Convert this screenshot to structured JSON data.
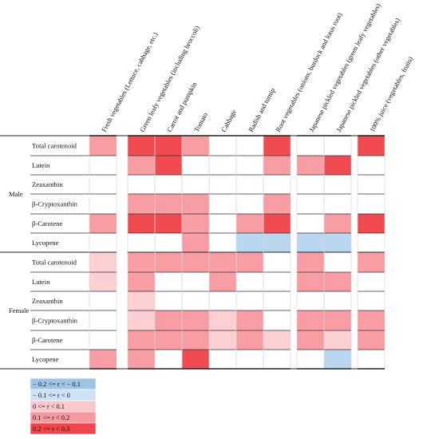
{
  "chart_data": {
    "type": "heatmap",
    "columns": [
      "Fresh vegetables (Lettuce, cabbage, etc.)",
      "Green leafy vegetables (including broccoli)",
      "Carrot and pumpkin",
      "Tomato",
      "Cabbage",
      "Radish and turnip",
      "Root vegetables (onions, burdock and lotus root)",
      "Japanese pickled vegetables (green leafy vegetables)",
      "Japanese pickled vegetables (other vegetables)",
      "100% juice (vegetables, fruits)"
    ],
    "groups": [
      {
        "name": "Male",
        "rows": [
          {
            "label": "Total carotenoid",
            "values": [
              3,
              4,
              4,
              3,
              null,
              null,
              4,
              null,
              null,
              4
            ]
          },
          {
            "label": "Lutein",
            "values": [
              null,
              3,
              4,
              null,
              null,
              null,
              3,
              3,
              4,
              null
            ]
          },
          {
            "label": "Zeaxanthin",
            "values": [
              null,
              null,
              null,
              null,
              null,
              null,
              null,
              null,
              null,
              null
            ]
          },
          {
            "label": "β-Cryptoxanthin",
            "values": [
              null,
              3,
              3,
              3,
              null,
              null,
              3,
              null,
              null,
              null
            ]
          },
          {
            "label": "β-Carotene",
            "values": [
              3,
              4,
              4,
              3,
              null,
              3,
              4,
              null,
              3,
              4
            ]
          },
          {
            "label": "Lycopene",
            "values": [
              null,
              null,
              null,
              3,
              null,
              1,
              1,
              1,
              1,
              null
            ]
          }
        ]
      },
      {
        "name": "Female",
        "rows": [
          {
            "label": "Total carotenoid",
            "values": [
              2,
              3,
              3,
              3,
              3,
              3,
              null,
              3,
              null,
              3
            ]
          },
          {
            "label": "Lutein",
            "values": [
              2,
              3,
              null,
              null,
              3,
              null,
              null,
              3,
              3,
              null
            ]
          },
          {
            "label": "Zeaxanthin",
            "values": [
              null,
              2,
              null,
              null,
              null,
              null,
              null,
              null,
              null,
              null
            ]
          },
          {
            "label": "β-Cryptoxanthin",
            "values": [
              null,
              2,
              3,
              3,
              2,
              3,
              null,
              3,
              3,
              3
            ]
          },
          {
            "label": "β-Carotene",
            "values": [
              null,
              3,
              3,
              3,
              2,
              3,
              2,
              3,
              2,
              3
            ]
          },
          {
            "label": "Lycopene",
            "values": [
              3,
              3,
              null,
              4,
              null,
              null,
              null,
              null,
              1,
              null
            ]
          }
        ]
      }
    ],
    "legend": [
      {
        "label": "− 0.2 <= r < − 0.1",
        "color": "#9ec4e6"
      },
      {
        "label": "− 0.1 <= r < 0",
        "color": "#cfe2f3"
      },
      {
        "label": "0 <= r < 0.1",
        "color": "#f9c9cd"
      },
      {
        "label": "0.1 <= r < 0.2",
        "color": "#f49aa0"
      },
      {
        "label": "0.2 <= r < 0.3",
        "color": "#ef454b"
      }
    ],
    "legend_placement": "bottom-left",
    "level_colors": {
      "1": "#b8d6ee",
      "2": "#fccfd3",
      "3": "#f79da3",
      "4": "#ef4b50"
    }
  }
}
